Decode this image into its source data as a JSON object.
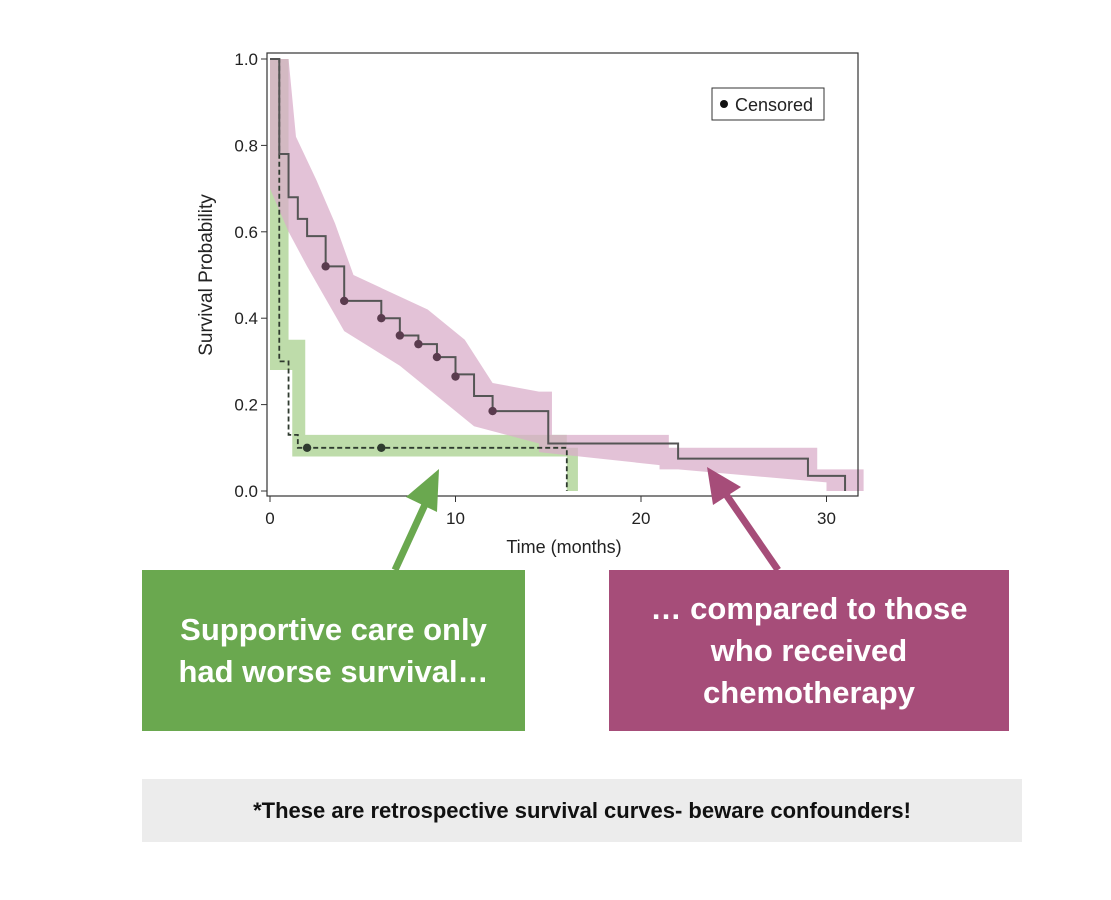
{
  "colors": {
    "green_band": "#a8d08d",
    "purple_band": "#d9aec9",
    "curve_line": "#555555",
    "censor_dot": "#5a3b4e",
    "green_callout": "#6aa84f",
    "purple_callout": "#a64d79",
    "note_bg": "#ececec"
  },
  "chart_data": {
    "type": "line",
    "xlabel": "Time (months)",
    "ylabel": "Survival Probability",
    "xlim": [
      -0.5,
      32
    ],
    "ylim": [
      -0.02,
      1.02
    ],
    "xticks": [
      0,
      10,
      20,
      30
    ],
    "yticks": [
      0.0,
      0.2,
      0.4,
      0.6,
      0.8,
      1.0
    ],
    "ytick_labels": [
      "0.0",
      "0.2",
      "0.4",
      "0.6",
      "0.8",
      "1.0"
    ],
    "legend": {
      "position": "top-right",
      "entries": [
        {
          "marker": "dot",
          "label": "Censored"
        }
      ]
    },
    "series": [
      {
        "style": "dashed",
        "band_color": "green",
        "step_x": [
          0,
          0.5,
          0.5,
          1,
          1,
          1.5,
          1.5,
          16,
          16
        ],
        "step_y": [
          1.0,
          1.0,
          0.3,
          0.3,
          0.13,
          0.13,
          0.1,
          0.1,
          0.0
        ],
        "band_upper": [
          [
            0,
            1.0
          ],
          [
            1,
            1.0
          ],
          [
            1,
            0.35
          ],
          [
            1.9,
            0.35
          ],
          [
            1.9,
            0.13
          ],
          [
            16,
            0.13
          ],
          [
            16,
            0.1
          ],
          [
            16.6,
            0.1
          ],
          [
            16.6,
            0.0
          ]
        ],
        "band_lower": [
          [
            16,
            0.0
          ],
          [
            16,
            0.08
          ],
          [
            1.2,
            0.08
          ],
          [
            1.2,
            0.28
          ],
          [
            0,
            0.28
          ]
        ],
        "censored": [
          [
            2,
            0.1
          ],
          [
            6,
            0.1
          ]
        ]
      },
      {
        "style": "solid",
        "band_color": "purple",
        "step_x": [
          0,
          0.5,
          0.5,
          1,
          1,
          1.5,
          1.5,
          2,
          2,
          3,
          3,
          4,
          4,
          6,
          6,
          7,
          7,
          8,
          8,
          9,
          9,
          10,
          10,
          11,
          11,
          12,
          12,
          15,
          15,
          22,
          22,
          29,
          29,
          31,
          31
        ],
        "step_y": [
          1.0,
          1.0,
          0.78,
          0.78,
          0.68,
          0.68,
          0.63,
          0.63,
          0.59,
          0.59,
          0.52,
          0.52,
          0.44,
          0.44,
          0.4,
          0.4,
          0.36,
          0.36,
          0.34,
          0.34,
          0.31,
          0.31,
          0.27,
          0.27,
          0.22,
          0.22,
          0.185,
          0.185,
          0.11,
          0.11,
          0.075,
          0.075,
          0.035,
          0.035,
          0.0
        ],
        "band_upper": [
          [
            0,
            1.0
          ],
          [
            1,
            1.0
          ],
          [
            1.4,
            0.82
          ],
          [
            2.5,
            0.72
          ],
          [
            3.5,
            0.62
          ],
          [
            4.5,
            0.5
          ],
          [
            8.5,
            0.42
          ],
          [
            10.5,
            0.35
          ],
          [
            12,
            0.25
          ],
          [
            14.5,
            0.23
          ],
          [
            15.2,
            0.23
          ],
          [
            15.2,
            0.13
          ],
          [
            21.5,
            0.13
          ],
          [
            21.5,
            0.1
          ],
          [
            29.5,
            0.1
          ],
          [
            29.5,
            0.05
          ],
          [
            32,
            0.05
          ]
        ],
        "band_lower": [
          [
            32,
            0.0
          ],
          [
            30,
            0.0
          ],
          [
            30,
            0.02
          ],
          [
            22,
            0.05
          ],
          [
            21,
            0.05
          ],
          [
            21,
            0.06
          ],
          [
            14.5,
            0.09
          ],
          [
            14.5,
            0.11
          ],
          [
            11,
            0.15
          ],
          [
            9,
            0.22
          ],
          [
            7,
            0.29
          ],
          [
            4,
            0.37
          ],
          [
            2,
            0.52
          ],
          [
            1,
            0.6
          ],
          [
            0,
            0.7
          ]
        ],
        "censored": [
          [
            3,
            0.52
          ],
          [
            4,
            0.44
          ],
          [
            6,
            0.4
          ],
          [
            7,
            0.36
          ],
          [
            8,
            0.34
          ],
          [
            9,
            0.31
          ],
          [
            10,
            0.265
          ],
          [
            12,
            0.185
          ]
        ]
      }
    ]
  },
  "callouts": {
    "green_text": "Supportive care only had worse survival…",
    "purple_text": "… compared to those who received chemotherapy"
  },
  "note": "*These are retrospective survival curves- beware confounders!"
}
